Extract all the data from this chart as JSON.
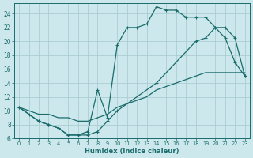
{
  "xlabel": "Humidex (Indice chaleur)",
  "bg_color": "#cce8ec",
  "grid_color": "#aacdd4",
  "line_color": "#1a6b6b",
  "xlim": [
    -0.5,
    23.5
  ],
  "ylim": [
    6,
    25.5
  ],
  "xticks": [
    0,
    1,
    2,
    3,
    4,
    5,
    6,
    7,
    8,
    9,
    10,
    11,
    12,
    13,
    14,
    15,
    16,
    17,
    18,
    19,
    20,
    21,
    22,
    23
  ],
  "yticks": [
    6,
    8,
    10,
    12,
    14,
    16,
    18,
    20,
    22,
    24
  ],
  "curve1_x": [
    0,
    1,
    2,
    3,
    4,
    5,
    6,
    7,
    8,
    9,
    10,
    11,
    12,
    13,
    14,
    15,
    16,
    17,
    18,
    19,
    20,
    21,
    22,
    23
  ],
  "curve1_y": [
    10.5,
    9.5,
    8.5,
    8.0,
    7.5,
    6.5,
    6.5,
    7.0,
    13.0,
    9.0,
    19.5,
    22.0,
    22.0,
    22.5,
    25.0,
    24.5,
    24.5,
    23.5,
    23.5,
    23.5,
    22.0,
    20.5,
    17.0,
    15.0
  ],
  "curve2_x": [
    0,
    2,
    3,
    4,
    5,
    6,
    7,
    8,
    9,
    10,
    14,
    18,
    19,
    20,
    21,
    22,
    23
  ],
  "curve2_y": [
    10.5,
    8.5,
    8.0,
    7.5,
    6.5,
    6.5,
    6.5,
    7.0,
    8.5,
    10.0,
    14.0,
    20.0,
    20.5,
    22.0,
    22.0,
    20.5,
    15.0
  ],
  "curve3_x": [
    0,
    1,
    2,
    3,
    4,
    5,
    6,
    7,
    8,
    9,
    10,
    11,
    12,
    13,
    14,
    15,
    16,
    17,
    18,
    19,
    20,
    21,
    22,
    23
  ],
  "curve3_y": [
    10.5,
    10.0,
    9.5,
    9.5,
    9.0,
    9.0,
    8.5,
    8.5,
    9.0,
    9.5,
    10.5,
    11.0,
    11.5,
    12.0,
    13.0,
    13.5,
    14.0,
    14.5,
    15.0,
    15.5,
    15.5,
    15.5,
    15.5,
    15.5
  ]
}
